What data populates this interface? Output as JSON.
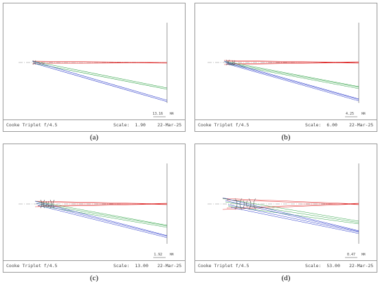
{
  "panels": [
    {
      "id": "a",
      "caption": "(a)",
      "title": "Cooke Triplet f/4.5",
      "scale_label": "Scale:",
      "scale_value": "1.90",
      "date": "22-Mar-25",
      "scalebar_value": "13.16",
      "scalebar_unit": "MM"
    },
    {
      "id": "b",
      "caption": "(b)",
      "title": "Cooke Triplet f/4.5",
      "scale_label": "Scale:",
      "scale_value": "6.00",
      "date": "22-Mar-25",
      "scalebar_value": "4.25",
      "scalebar_unit": "MM"
    },
    {
      "id": "c",
      "caption": "(c)",
      "title": "Cooke Triplet f/4.5",
      "scale_label": "Scale:",
      "scale_value": "13.00",
      "date": "22-Mar-25",
      "scalebar_value": "1.92",
      "scalebar_unit": "MM"
    },
    {
      "id": "d",
      "caption": "(d)",
      "title": "Cooke Triplet f/4.5",
      "scale_label": "Scale:",
      "scale_value": "53.00",
      "date": "22-Mar-25",
      "scalebar_value": "0.47",
      "scalebar_unit": "MM"
    }
  ],
  "colors": {
    "axis_ray": "#e03030",
    "mid_ray": "#2aa040",
    "edge_ray": "#2030c8",
    "frame": "#9a9a9a",
    "image_plane": "#808080"
  },
  "icons": [
    "lens-element-icon"
  ]
}
